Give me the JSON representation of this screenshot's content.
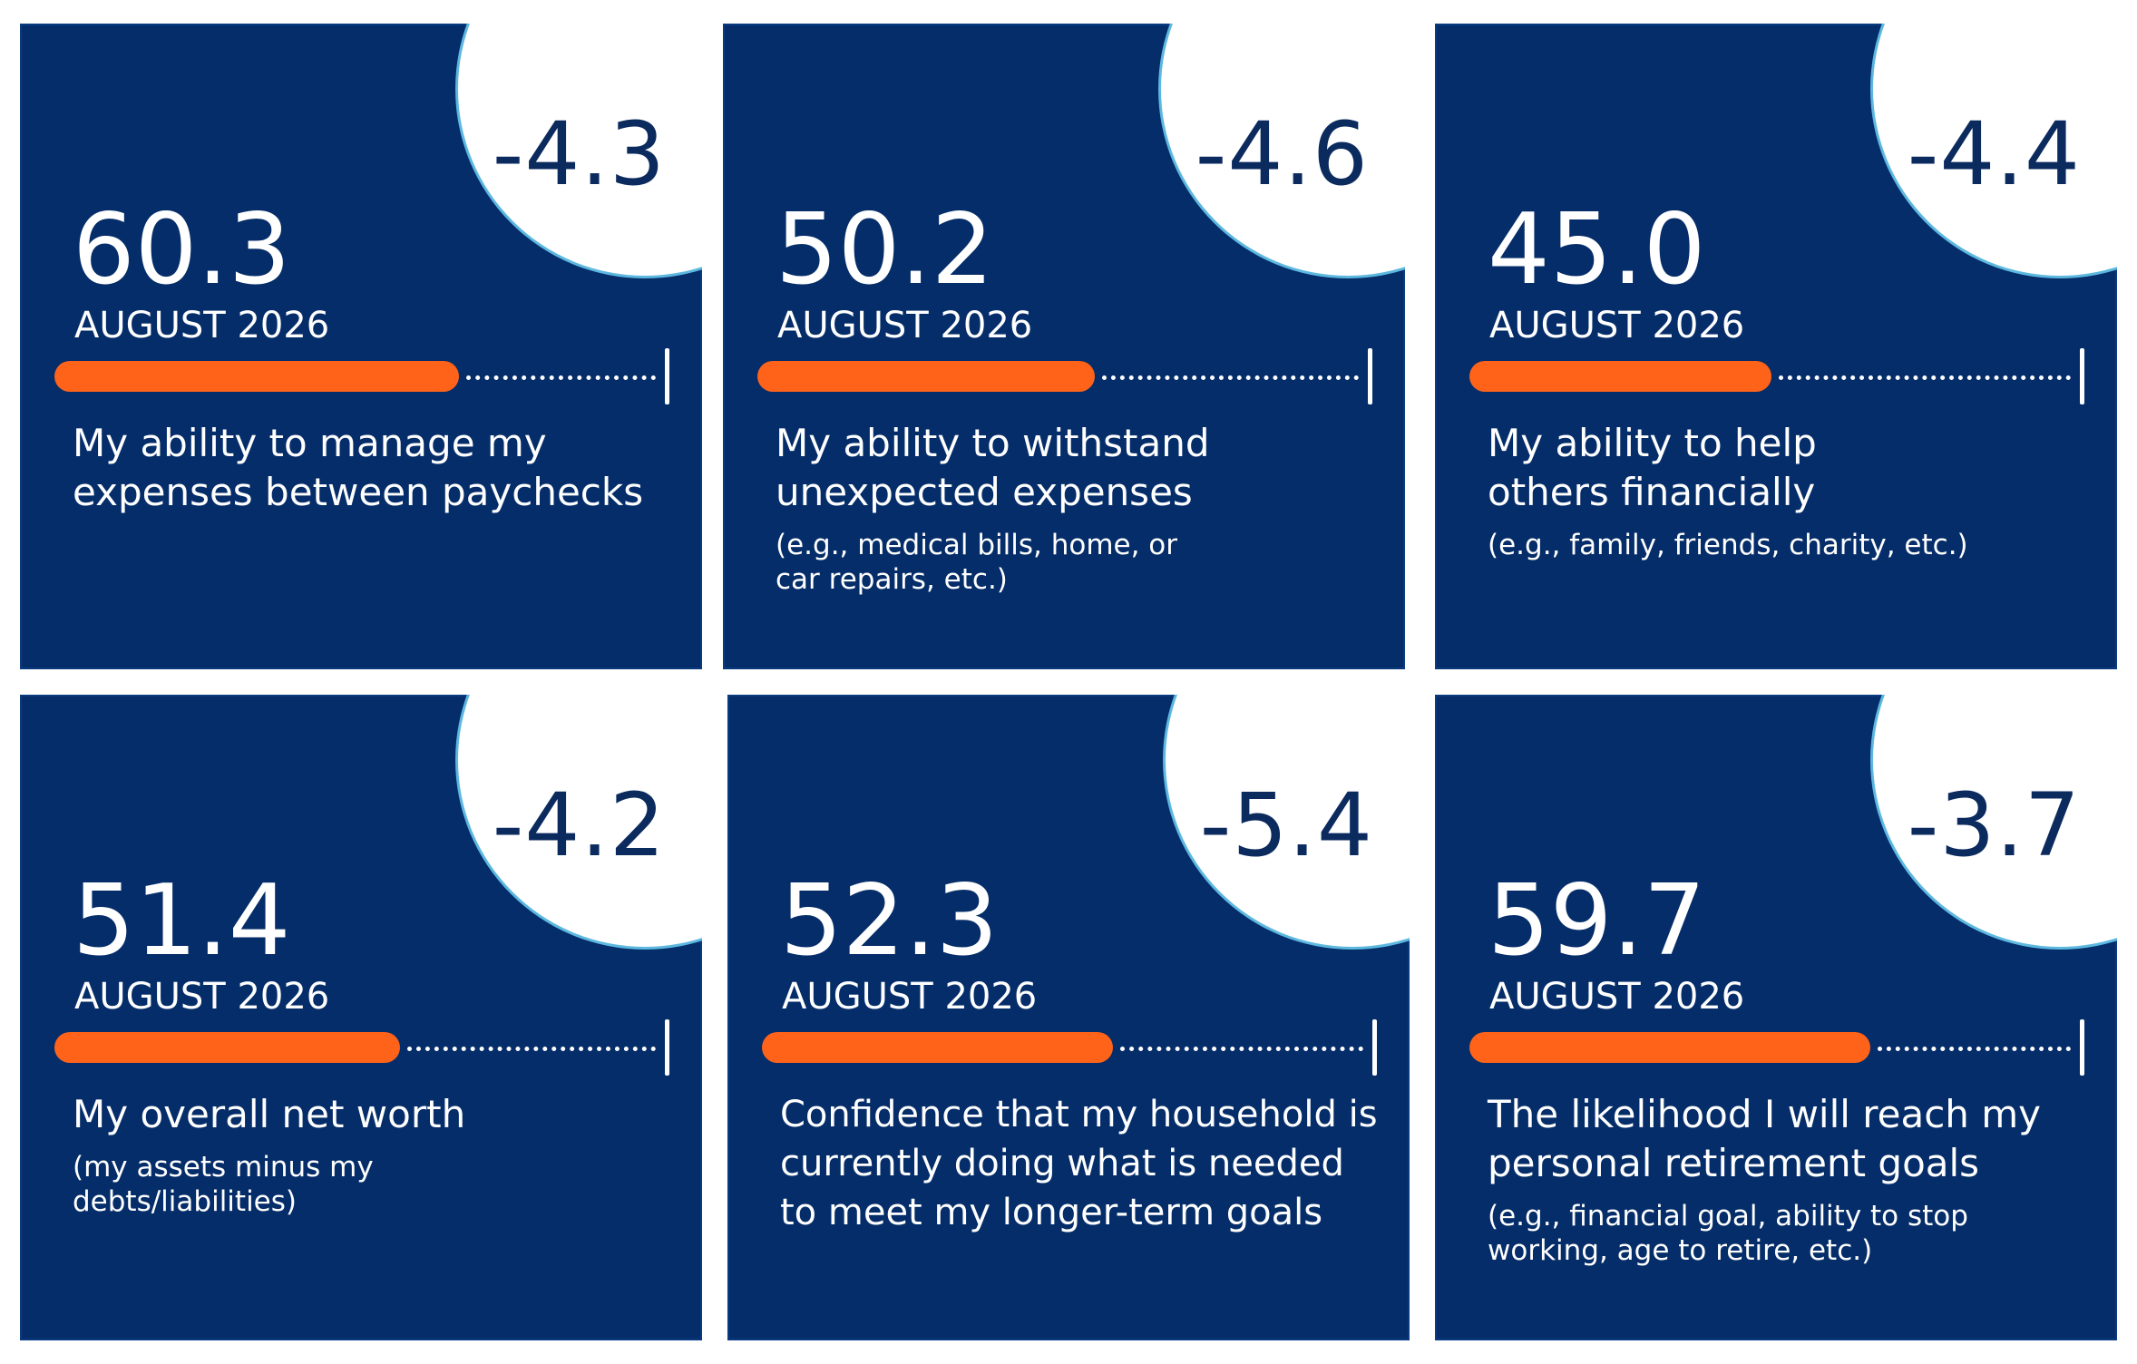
{
  "cards": [
    {
      "change": "-4.3",
      "score": "60.3",
      "score_value": 60.3,
      "period": "AUGUST 2026",
      "title": "My ability to manage my expenses between paychecks",
      "note": ""
    },
    {
      "change": "-4.6",
      "score": "50.2",
      "score_value": 50.2,
      "period": "AUGUST 2026",
      "title": "My ability to withstand unexpected expenses",
      "note": "(e.g., medical bills, home, or car repairs, etc.)"
    },
    {
      "change": "-4.4",
      "score": "45.0",
      "score_value": 45.0,
      "period": "AUGUST 2026",
      "title": "My ability to help others financially",
      "note": "(e.g., family, friends, charity, etc.)"
    },
    {
      "change": "-4.2",
      "score": "51.4",
      "score_value": 51.4,
      "period": "AUGUST 2026",
      "title": "My overall net worth",
      "note": "(my assets minus my debts/liabilities)"
    },
    {
      "change": "-5.4",
      "score": "52.3",
      "score_value": 52.3,
      "period": "AUGUST 2026",
      "title": "Confidence that my household is currently doing what is needed to meet my longer-term goals",
      "note": ""
    },
    {
      "change": "-3.7",
      "score": "59.7",
      "score_value": 59.7,
      "period": "AUGUST 2026",
      "title": "The likelihood I will reach my personal retirement goals",
      "note": "(e.g., financial goal, ability to stop working, age to retire, etc.)"
    }
  ],
  "colors": {
    "card_background": "#052d69",
    "bar_fill": "#ff6319",
    "circle_border": "#5db8e0",
    "change_text": "#0b2a5e"
  }
}
